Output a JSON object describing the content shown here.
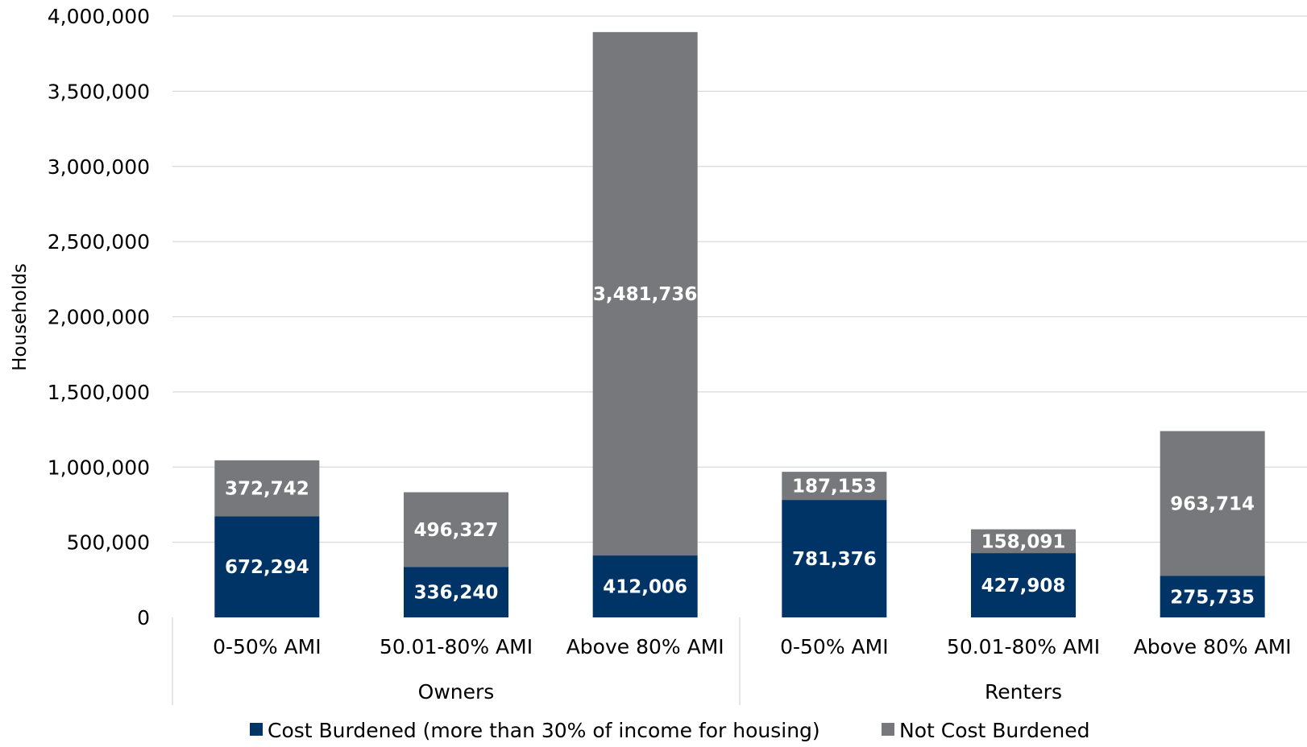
{
  "chart_data": {
    "type": "bar",
    "stacked": true,
    "ylabel": "Households",
    "ylim": [
      0,
      4000000
    ],
    "yticks": [
      0,
      500000,
      1000000,
      1500000,
      2000000,
      2500000,
      3000000,
      3500000,
      4000000
    ],
    "ytick_labels": [
      "0",
      "500,000",
      "1,000,000",
      "1,500,000",
      "2,000,000",
      "2,500,000",
      "3,000,000",
      "3,500,000",
      "4,000,000"
    ],
    "grid": true,
    "legend_position": "bottom",
    "groups": [
      {
        "label": "Owners",
        "categories": [
          "0-50% AMI",
          "50.01-80% AMI",
          "Above 80% AMI"
        ]
      },
      {
        "label": "Renters",
        "categories": [
          "0-50% AMI",
          "50.01-80% AMI",
          "Above 80% AMI"
        ]
      }
    ],
    "categories": [
      "0-50% AMI",
      "50.01-80% AMI",
      "Above 80% AMI",
      "0-50% AMI",
      "50.01-80% AMI",
      "Above 80% AMI"
    ],
    "series": [
      {
        "name": "Cost Burdened (more than 30% of income for housing)",
        "color": "#003366",
        "values": [
          672294,
          336240,
          412006,
          781376,
          427908,
          275735
        ],
        "labels": [
          "672,294",
          "336,240",
          "412,006",
          "781,376",
          "427,908",
          "275,735"
        ]
      },
      {
        "name": "Not Cost Burdened",
        "color": "#77787b",
        "values": [
          372742,
          496327,
          3481736,
          187153,
          158091,
          963714
        ],
        "labels": [
          "372,742",
          "496,327",
          "3,481,736",
          "187,153",
          "158,091",
          "963,714"
        ]
      }
    ]
  }
}
